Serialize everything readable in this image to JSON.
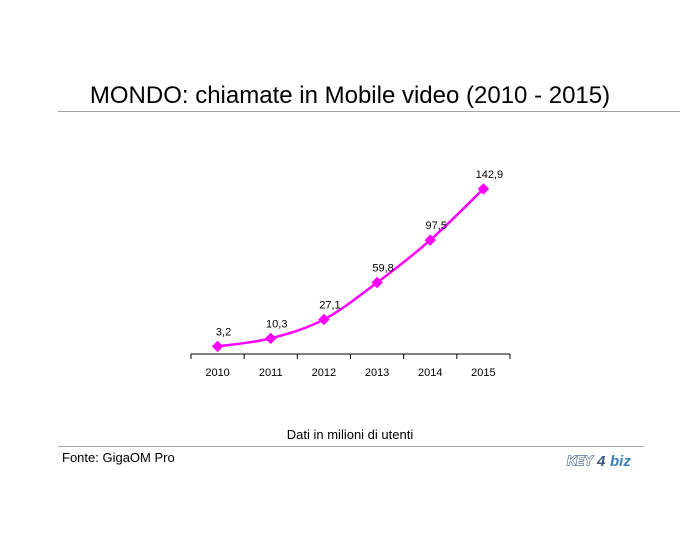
{
  "title": "MONDO: chiamate in Mobile video (2010 - 2015)",
  "note": "Dati in milioni di utenti",
  "source": "Fonte: GigaOM Pro",
  "logo": {
    "text_left": "KEY",
    "text_mid": "4",
    "text_right": "biz",
    "colors": {
      "primary": "#3d5a80",
      "accent": "#3b7ec0"
    }
  },
  "colors": {
    "series": "#ff00ff",
    "axis": "#000000",
    "rule": "#a0a0a0"
  },
  "chart_data": {
    "type": "line",
    "title": "MONDO: chiamate in Mobile video (2010 - 2015)",
    "categories": [
      "2010",
      "2011",
      "2012",
      "2013",
      "2014",
      "2015"
    ],
    "series": [
      {
        "values": [
          3.2,
          10.3,
          27.1,
          59.8,
          97.5,
          142.9
        ],
        "value_labels": [
          "3,2",
          "10,3",
          "27,1",
          "59,8",
          "97,5",
          "142,9"
        ],
        "marker": "diamond",
        "smooth": true
      }
    ],
    "ylim": [
      0,
      165
    ],
    "grid": false,
    "legend": "none",
    "y_axis_visible": false
  }
}
